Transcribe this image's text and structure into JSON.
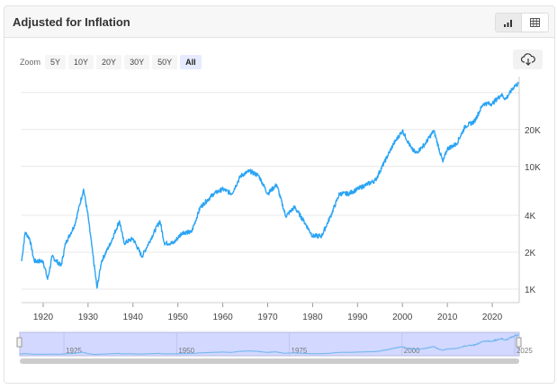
{
  "header": {
    "title": "Adjusted for Inflation",
    "chart_view_icon": "bar-chart-icon",
    "table_view_icon": "table-icon"
  },
  "zoom": {
    "label": "Zoom",
    "options": [
      "5Y",
      "10Y",
      "20Y",
      "30Y",
      "50Y",
      "All"
    ],
    "selected": "All"
  },
  "download_icon": "cloud-download-icon",
  "colors": {
    "line": "#2aa4f4",
    "navigator_fill": "#d2d8ff"
  },
  "chart_data": {
    "type": "line",
    "title": "Adjusted for Inflation",
    "xlabel": "",
    "ylabel": "",
    "yscale": "log",
    "xlim": [
      1915.2,
      2026
    ],
    "ylim": [
      800,
      52000
    ],
    "x_ticks": [
      1920,
      1930,
      1940,
      1950,
      1960,
      1970,
      1980,
      1990,
      2000,
      2010,
      2020
    ],
    "y_ticks": [
      {
        "value": 1000,
        "label": "1K"
      },
      {
        "value": 2000,
        "label": "2K"
      },
      {
        "value": 4000,
        "label": "4K"
      },
      {
        "value": 10000,
        "label": "10K"
      },
      {
        "value": 20000,
        "label": "20K"
      },
      {
        "value": 40000,
        "label": ""
      }
    ],
    "navigator_labels": [
      "1925",
      "1950",
      "1975",
      "2000",
      "2025"
    ],
    "series": [
      {
        "name": "Adjusted for Inflation",
        "x": [
          1915.2,
          1916,
          1917,
          1918,
          1920,
          1921,
          1922,
          1924,
          1925,
          1927,
          1929,
          1930,
          1931,
          1932,
          1933,
          1935,
          1937,
          1938,
          1940,
          1942,
          1944,
          1946,
          1947,
          1949,
          1951,
          1953,
          1955,
          1958,
          1960,
          1962,
          1964,
          1966,
          1968,
          1970,
          1972,
          1974,
          1976,
          1978,
          1980,
          1982,
          1984,
          1986,
          1988,
          1990,
          1992,
          1994,
          1996,
          1998,
          2000,
          2002,
          2003,
          2005,
          2007,
          2009,
          2010,
          2012,
          2014,
          2016,
          2018,
          2020,
          2022,
          2023,
          2025,
          2025.8
        ],
        "values": [
          1690,
          2900,
          2580,
          1690,
          1690,
          1200,
          1840,
          1550,
          2370,
          3320,
          6530,
          3930,
          2000,
          1020,
          1690,
          2370,
          3610,
          2370,
          2580,
          1840,
          2580,
          3610,
          2370,
          2370,
          2900,
          2900,
          4660,
          6000,
          6530,
          6000,
          8410,
          9160,
          8410,
          6000,
          7110,
          3930,
          4660,
          3610,
          2710,
          2710,
          3930,
          6000,
          6000,
          6530,
          7110,
          7730,
          10850,
          15200,
          19600,
          13980,
          12840,
          15200,
          19600,
          10850,
          13980,
          15200,
          21300,
          23200,
          32500,
          32500,
          38500,
          35400,
          45600,
          47000
        ]
      }
    ]
  }
}
